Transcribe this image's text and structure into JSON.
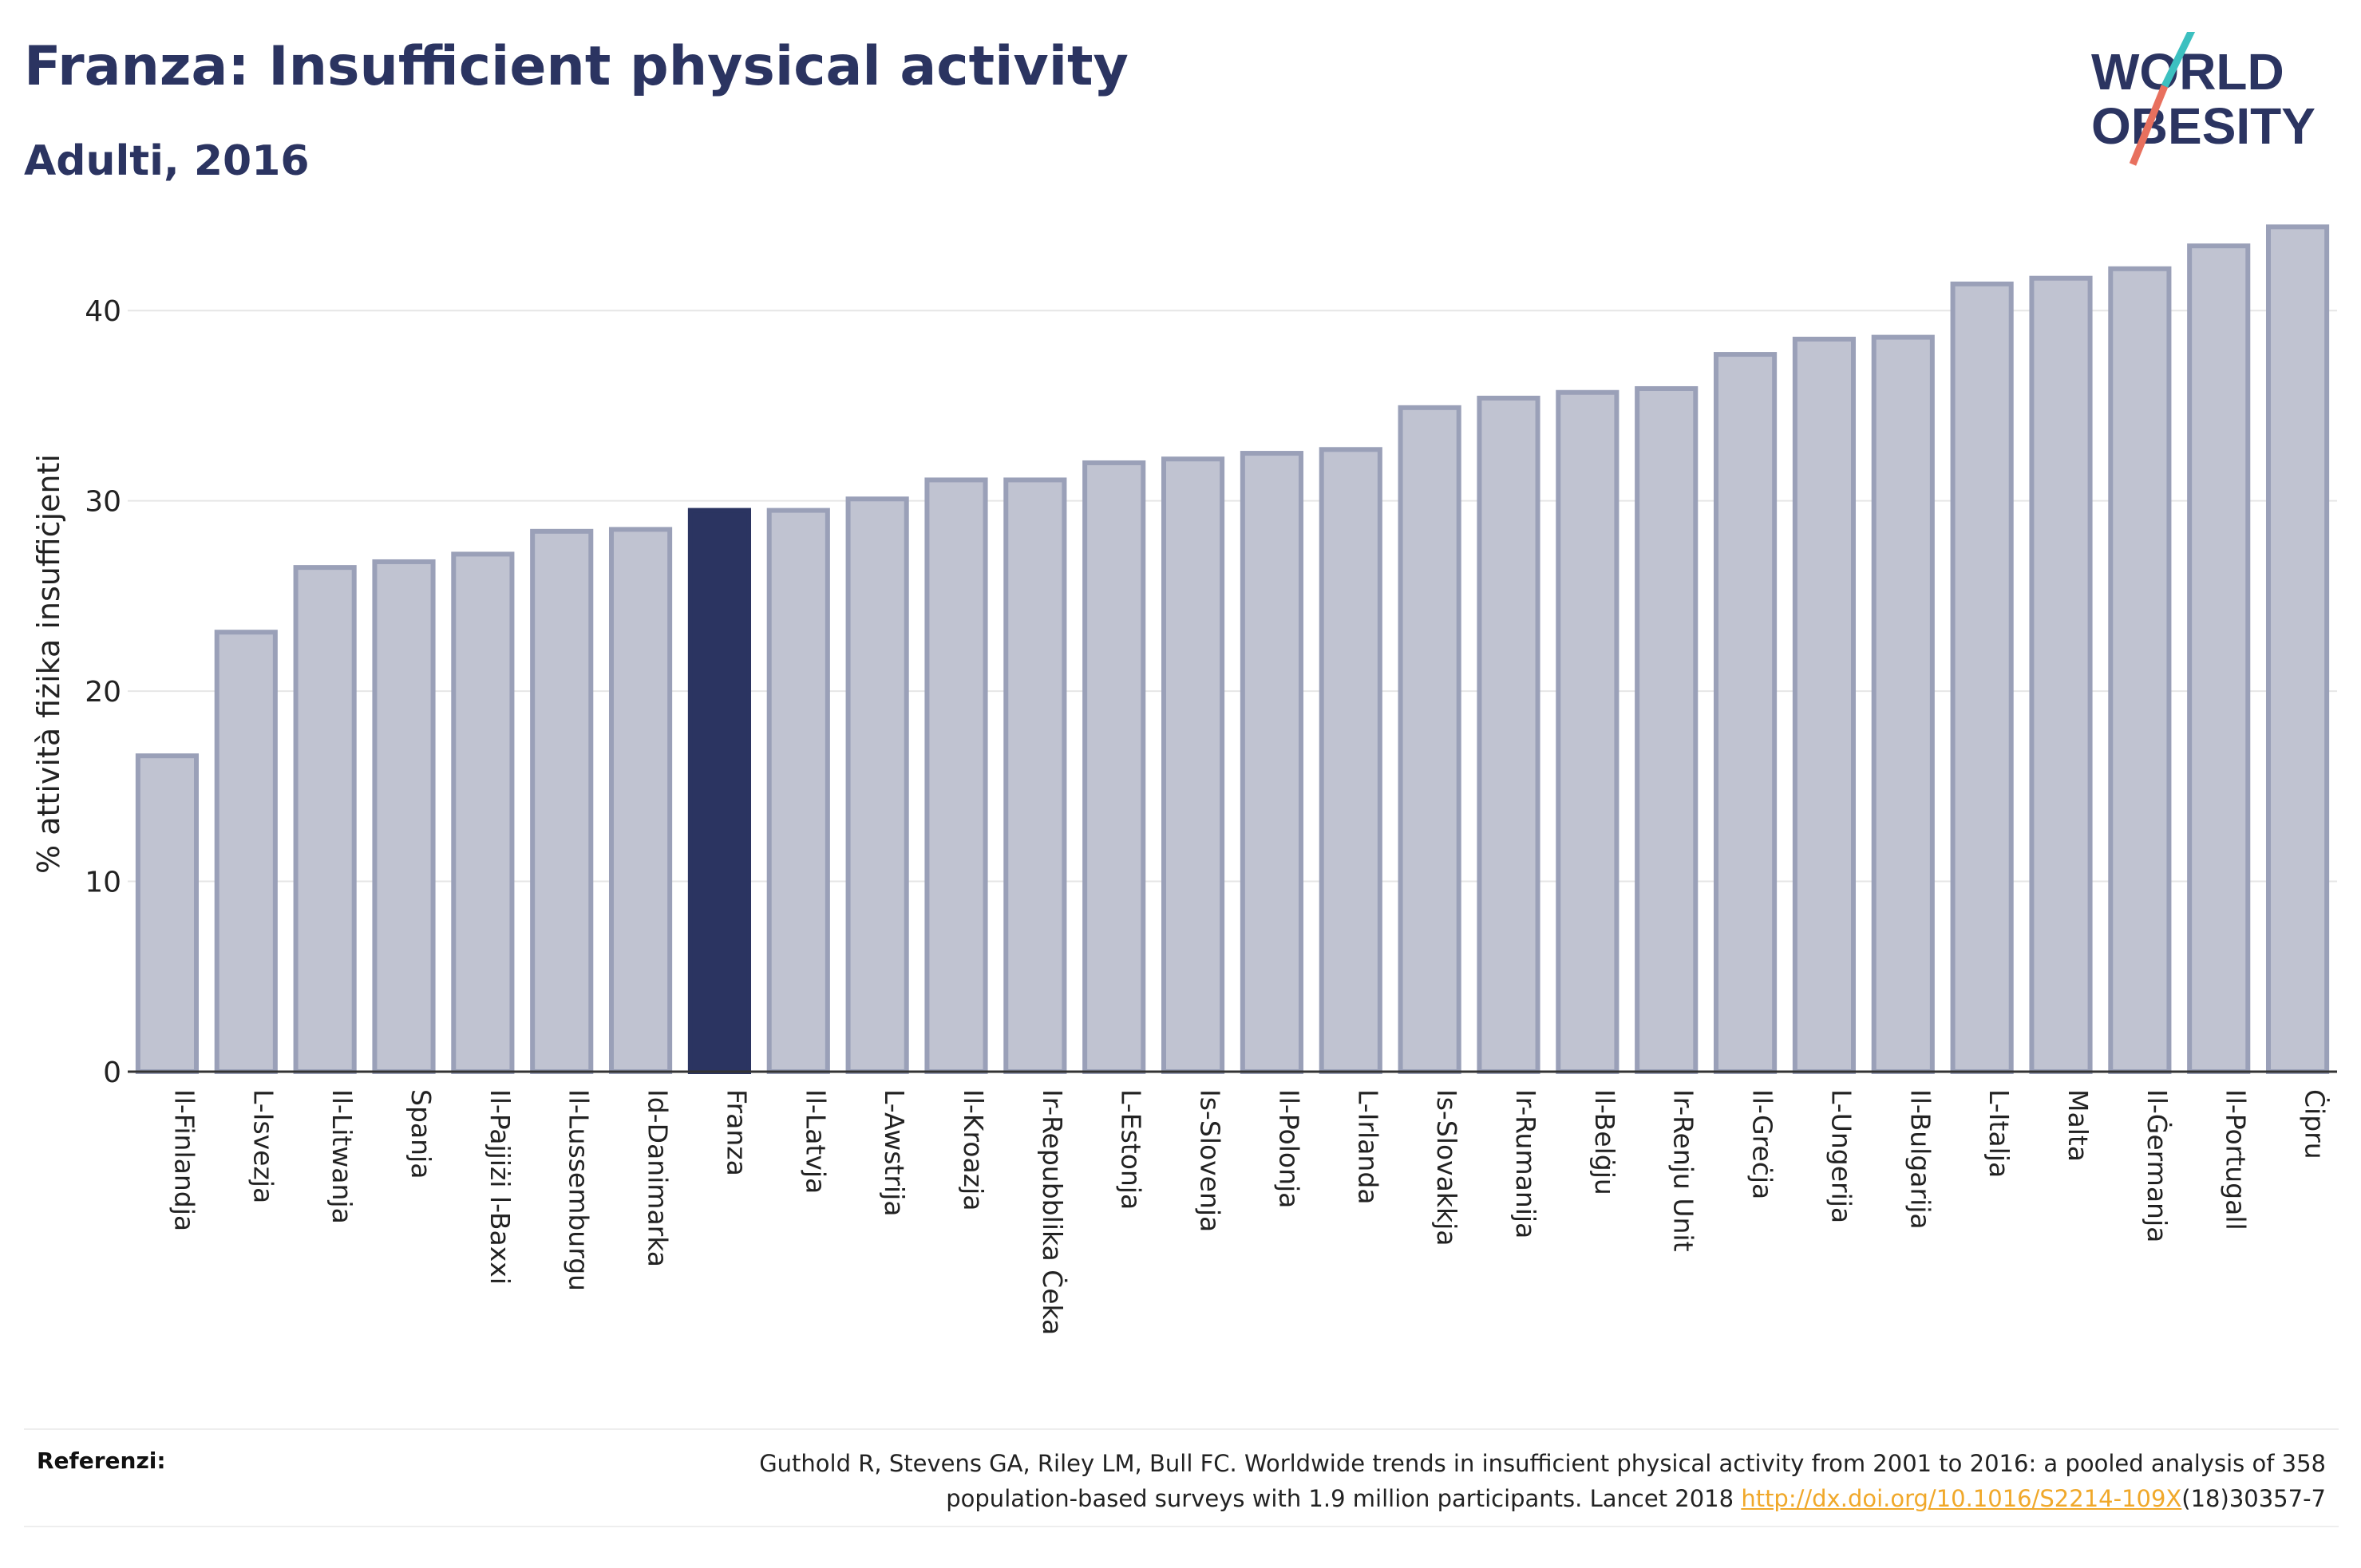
{
  "header": {
    "title": "Franza: Insufficient physical activity",
    "subtitle": "Adulti, 2016"
  },
  "logo": {
    "line1": "WORLD",
    "line2": "OBESITY",
    "accent_colors": [
      "#3cc0c0",
      "#e8705e"
    ]
  },
  "colors": {
    "bar": "#c0c3d1",
    "bar_stroke": "#9aa0b8",
    "highlight": "#2b3461",
    "text": "#2b3461"
  },
  "chart_data": {
    "type": "bar",
    "ylabel": "% attività fiżika insuffiċjenti",
    "ylim": [
      0,
      45
    ],
    "yticks": [
      0,
      10,
      20,
      30,
      40
    ],
    "grid": true,
    "highlight": "Franza",
    "categories": [
      "Il-Finlandja",
      "L-Isvezja",
      "Il-Litwanja",
      "Spanja",
      "Il-Pajjiżi l-Baxxi",
      "Il-Lussemburgu",
      "Id-Danimarka",
      "Franza",
      "Il-Latvja",
      "L-Awstrija",
      "Il-Kroazja",
      "Ir-Repubblika Ċeka",
      "L-Estonja",
      "Is-Slovenja",
      "Il-Polonja",
      "L-Irlanda",
      "Is-Slovakkja",
      "Ir-Rumanija",
      "Il-Belġju",
      "Ir-Renju Unit",
      "Il-Greċja",
      "L-Ungerija",
      "Il-Bulgarija",
      "L-Italja",
      "Malta",
      "Il-Ġermanja",
      "Il-Portugall",
      "Ċipru"
    ],
    "values": [
      16.6,
      23.1,
      26.5,
      26.8,
      27.2,
      28.4,
      28.5,
      29.5,
      29.5,
      30.1,
      31.1,
      31.1,
      32.0,
      32.2,
      32.5,
      32.7,
      34.9,
      35.4,
      35.7,
      35.9,
      37.7,
      38.5,
      38.6,
      41.4,
      41.7,
      42.2,
      43.4,
      44.4
    ]
  },
  "references": {
    "label": "Referenzi:",
    "line1": "Guthold R, Stevens GA, Riley LM, Bull FC. Worldwide trends in insufficient physical activity from 2001 to 2016: a pooled analysis of 358",
    "line2_prefix": "population-based surveys with 1.9 million participants. Lancet 2018 ",
    "link": "http://dx.doi.org/10.1016/S2214-109X",
    "line2_suffix": "(18)30357-7"
  }
}
